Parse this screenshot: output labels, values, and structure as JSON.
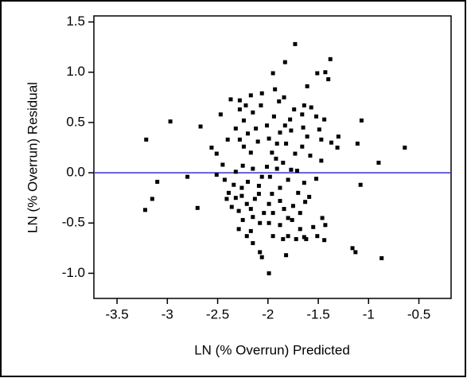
{
  "chart_data": {
    "type": "scatter",
    "x_label": "LN (% Overrun) Predicted",
    "y_label": "LN (% Overrun) Residual",
    "xlim": [
      -3.73,
      -0.18
    ],
    "ylim": [
      -1.25,
      1.56
    ],
    "xticks": [
      -3.5,
      -3.0,
      -2.5,
      -2.0,
      -1.5,
      -1.0,
      -0.5
    ],
    "yticks": [
      {
        "value": 1.5,
        "label": "1.5"
      },
      {
        "value": 1.0,
        "label": "1.0"
      },
      0.5,
      {
        "value": 0.0,
        "label": "0.0"
      },
      -0.5,
      {
        "value": -1.0,
        "label": "-1.0"
      }
    ],
    "reference_line": {
      "value": 0,
      "color": "#3a2fd0"
    },
    "color": "#000000",
    "series": [
      {
        "x": [
          -3.21,
          -2.97,
          -3.1,
          -3.15,
          -3.22,
          -2.8,
          -2.7,
          -2.67,
          -2.56,
          -2.51,
          -2.47,
          -2.37,
          -2.28,
          -2.22,
          -2.17,
          -2.06,
          -1.95,
          -1.83,
          -1.73,
          -1.61,
          -1.64,
          -1.61,
          -1.51,
          -1.43,
          -1.38,
          -1.4,
          -1.57,
          -1.52,
          -1.49,
          -1.3,
          -1.31,
          -1.37,
          -1.07,
          -1.11,
          -1.08,
          -0.9,
          -0.64,
          -1.16,
          -1.13,
          -0.87,
          -1.46,
          -1.43,
          -1.44,
          -1.51,
          -1.55,
          -1.64,
          -1.68,
          -1.72,
          -1.82,
          -1.99,
          -2.06,
          -2.08,
          -2.15,
          -2.17,
          -2.25,
          -2.29,
          -2.36,
          -2.41,
          -2.39,
          -2.34,
          -2.26,
          -2.21,
          -2.17,
          -2.13,
          -2.09,
          -2.06,
          -2.01,
          -1.96,
          -1.91,
          -1.88,
          -1.83,
          -1.78,
          -1.74,
          -1.84,
          -1.89,
          -1.94,
          -2.01,
          -2.12,
          -2.2,
          -2.28,
          -2.32,
          -2.24,
          -2.17,
          -2.1,
          -1.99,
          -1.92,
          -1.85,
          -1.77,
          -1.71,
          -1.8,
          -1.88,
          -1.96,
          -1.99,
          -2.04,
          -2.08,
          -1.95,
          -1.88,
          -1.8,
          -1.75,
          -1.7,
          -1.64,
          -1.63,
          -1.68,
          -1.59,
          -1.52,
          -1.47,
          -1.58,
          -1.66,
          -1.73,
          -1.82,
          -2.4,
          -2.45,
          -2.51,
          -2.43,
          -2.32,
          -2.25,
          -2.15,
          -2.2,
          -2.26,
          -2.32,
          -2.29,
          -2.21,
          -1.95,
          -1.85,
          -1.8,
          -1.62,
          -1.47,
          -1.44,
          -1.93,
          -2.07,
          -2.15,
          -2.24,
          -2.28,
          -1.66,
          -1.65,
          -1.77,
          -1.98,
          -1.91,
          -2.09,
          -2.15,
          -1.99,
          -1.76,
          -1.84,
          -1.88
        ],
        "values": [
          0.33,
          0.51,
          -0.09,
          -0.26,
          -0.37,
          -0.04,
          -0.35,
          0.46,
          0.25,
          0.19,
          0.58,
          0.73,
          0.72,
          0.67,
          0.77,
          0.79,
          0.99,
          1.1,
          1.28,
          0.36,
          0.67,
          0.86,
          0.99,
          1.0,
          1.13,
          0.93,
          0.65,
          0.56,
          0.43,
          0.36,
          0.25,
          0.3,
          0.52,
          0.29,
          -0.12,
          0.1,
          0.25,
          -0.75,
          -0.79,
          -0.85,
          -0.45,
          -0.52,
          -0.67,
          -0.63,
          -0.54,
          -0.64,
          -0.56,
          -0.66,
          -0.82,
          -1.0,
          -0.84,
          -0.79,
          -0.7,
          -0.58,
          -0.47,
          -0.38,
          -0.34,
          -0.26,
          -0.2,
          -0.12,
          -0.23,
          -0.31,
          -0.36,
          -0.26,
          -0.13,
          -0.04,
          0.06,
          0.2,
          0.29,
          0.4,
          0.47,
          0.53,
          0.63,
          0.75,
          0.71,
          0.56,
          0.47,
          0.44,
          0.39,
          0.33,
          0.44,
          0.26,
          0.2,
          0.31,
          0.34,
          0.14,
          0.1,
          0.03,
          0.02,
          -0.07,
          -0.15,
          -0.21,
          -0.31,
          -0.4,
          -0.5,
          -0.4,
          -0.52,
          -0.45,
          -0.33,
          -0.2,
          -0.1,
          -0.29,
          -0.4,
          -0.24,
          -0.06,
          0.12,
          0.17,
          0.26,
          0.19,
          0.29,
          0.33,
          0.08,
          -0.02,
          -0.07,
          0.01,
          0.07,
          0.04,
          -0.09,
          -0.15,
          -0.25,
          -0.56,
          -0.63,
          -0.63,
          -0.66,
          -0.63,
          -0.66,
          0.33,
          0.53,
          0.83,
          0.67,
          0.6,
          0.52,
          0.63,
          0.58,
          0.45,
          0.42,
          -0.04,
          0.04,
          -0.21,
          -0.44,
          -0.5,
          -0.47,
          -0.36,
          -0.28
        ]
      }
    ]
  }
}
